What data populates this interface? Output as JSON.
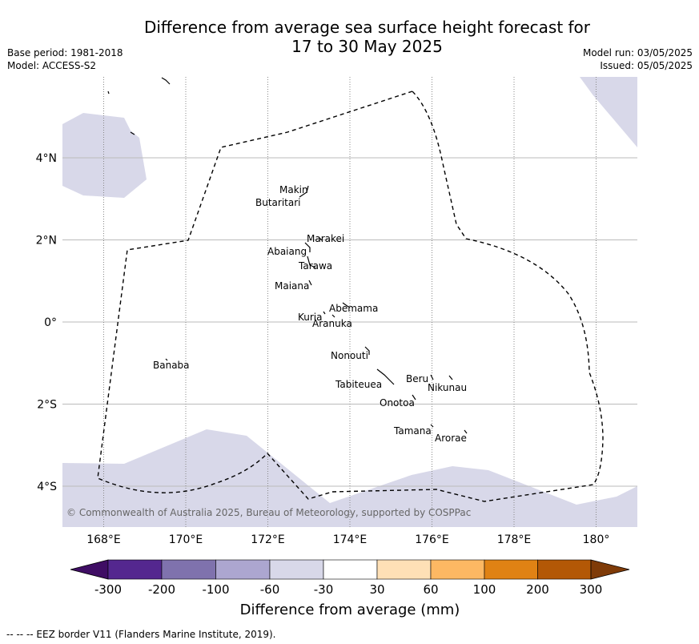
{
  "title": {
    "line1": "Difference from average sea surface height forecast for",
    "line2": "17 to 30 May 2025"
  },
  "meta_left": {
    "base_period": "Base period: 1981-2018",
    "model": "Model: ACCESS-S2"
  },
  "meta_right": {
    "model_run": "Model run: 03/05/2025",
    "issued": "Issued: 05/05/2025"
  },
  "map": {
    "lon_range": [
      167,
      181
    ],
    "lat_range": [
      -5,
      6
    ],
    "lat_ticks": [
      {
        "value": 4,
        "label": "4°N"
      },
      {
        "value": 2,
        "label": "2°N"
      },
      {
        "value": 0,
        "label": "0°"
      },
      {
        "value": -2,
        "label": "2°S"
      },
      {
        "value": -4,
        "label": "4°S"
      }
    ],
    "lon_ticks": [
      {
        "value": 168,
        "label": "168°E"
      },
      {
        "value": 170,
        "label": "170°E"
      },
      {
        "value": 172,
        "label": "172°E"
      },
      {
        "value": 174,
        "label": "174°E"
      },
      {
        "value": 176,
        "label": "176°E"
      },
      {
        "value": 178,
        "label": "178°E"
      },
      {
        "value": 180,
        "label": "180°"
      }
    ],
    "islands": [
      "Makin",
      "Butaritari",
      "Marakei",
      "Abaiang",
      "Tarawa",
      "Maiana",
      "Abemama",
      "Kuria",
      "Aranuka",
      "Nonouti",
      "Banaba",
      "Beru",
      "Nikunau",
      "Tabiteuea",
      "Onotoa",
      "Tamana",
      "Arorae"
    ],
    "copyright": "© Commonwealth of Australia 2025, Bureau of Meteorology, supported by COSPPac",
    "shade_color": "#d8d8e9"
  },
  "colorbar": {
    "ticks": [
      "-300",
      "-200",
      "-100",
      "-60",
      "-30",
      "30",
      "60",
      "100",
      "200",
      "300"
    ],
    "colors": [
      "#3f0d64",
      "#54278f",
      "#7f72ad",
      "#aca6d0",
      "#d8d8e9",
      "#ffffff",
      "#fee0b6",
      "#fdb863",
      "#e08214",
      "#b35806",
      "#7f3b08"
    ],
    "label": "Difference from average (mm)"
  },
  "footnote": "--  --  -- EEZ border V11 (Flanders Marine Institute, 2019)."
}
